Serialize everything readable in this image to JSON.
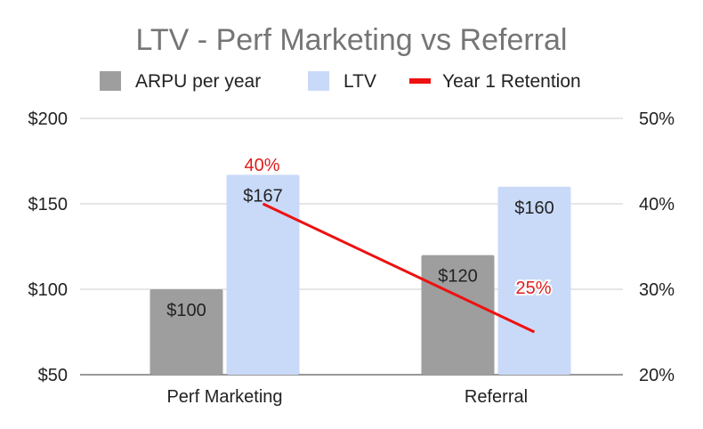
{
  "chart_data": {
    "type": "bar",
    "title": "LTV - Perf Marketing vs Referral",
    "categories": [
      "Perf Marketing",
      "Referral"
    ],
    "series": [
      {
        "name": "ARPU per year",
        "kind": "bar",
        "axis": "left",
        "color": "#9e9e9e",
        "values": [
          100,
          120
        ],
        "labels": [
          "$100",
          "$120"
        ]
      },
      {
        "name": "LTV",
        "kind": "bar",
        "axis": "left",
        "color": "#c9daf8",
        "values": [
          167,
          160
        ],
        "labels": [
          "$167",
          "$160"
        ]
      },
      {
        "name": "Year 1 Retention",
        "kind": "line",
        "axis": "right",
        "color": "#ee1111",
        "values": [
          40,
          25
        ],
        "labels": [
          "40%",
          "25%"
        ]
      }
    ],
    "left_axis": {
      "min": 50,
      "max": 200,
      "ticks": [
        200,
        150,
        100,
        50
      ],
      "tick_labels": [
        "$200",
        "$150",
        "$100",
        "$50"
      ]
    },
    "right_axis": {
      "min": 20,
      "max": 50,
      "ticks": [
        50,
        40,
        30,
        20
      ],
      "tick_labels": [
        "50%",
        "40%",
        "30%",
        "20%"
      ]
    },
    "legend": {
      "position": "top"
    },
    "grid": true
  }
}
